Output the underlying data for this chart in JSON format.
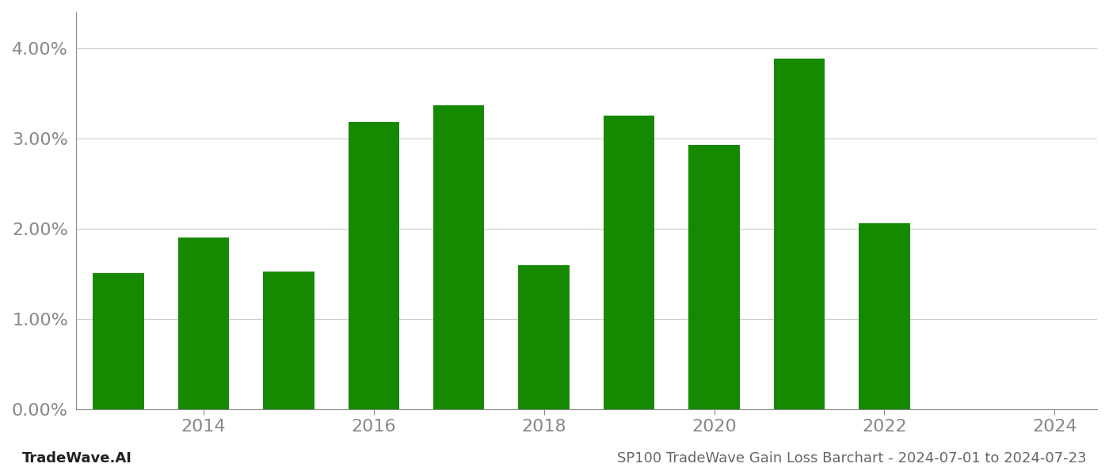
{
  "years": [
    2013,
    2014,
    2015,
    2016,
    2017,
    2018,
    2019,
    2020,
    2021,
    2022,
    2023
  ],
  "values": [
    0.0151,
    0.019,
    0.0153,
    0.0318,
    0.0337,
    0.016,
    0.0325,
    0.0293,
    0.0388,
    0.0206,
    0.0
  ],
  "bar_color": "#158a00",
  "background_color": "#ffffff",
  "ylim": [
    0,
    0.044
  ],
  "yticks": [
    0.0,
    0.01,
    0.02,
    0.03,
    0.04
  ],
  "ytick_labels": [
    "0.00%",
    "1.00%",
    "2.00%",
    "3.00%",
    "4.00%"
  ],
  "xtick_positions": [
    2014,
    2016,
    2018,
    2020,
    2022,
    2024
  ],
  "xtick_labels": [
    "2014",
    "2016",
    "2018",
    "2020",
    "2022",
    "2024"
  ],
  "footer_left": "TradeWave.AI",
  "footer_right": "SP100 TradeWave Gain Loss Barchart - 2024-07-01 to 2024-07-23",
  "footer_fontsize": 13,
  "tick_fontsize": 16,
  "grid_color": "#cccccc",
  "axis_color": "#888888",
  "tick_color": "#888888",
  "bar_width": 0.6,
  "xlim": [
    2012.5,
    2024.5
  ]
}
